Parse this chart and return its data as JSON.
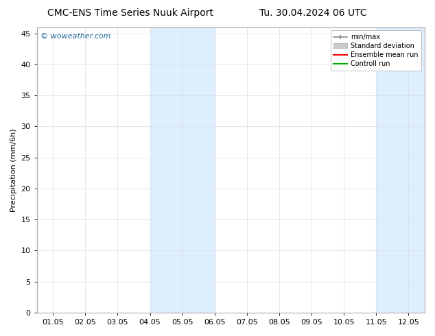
{
  "title": "CMC-ENS Time Series Nuuk Airport",
  "title2": "Tu. 30.04.2024 06 UTC",
  "ylabel": "Precipitation (mm/6h)",
  "ylim": [
    0,
    46
  ],
  "yticks": [
    0,
    5,
    10,
    15,
    20,
    25,
    30,
    35,
    40,
    45
  ],
  "xtick_labels": [
    "01.05",
    "02.05",
    "03.05",
    "04.05",
    "05.05",
    "06.05",
    "07.05",
    "08.05",
    "09.05",
    "10.05",
    "11.05",
    "12.05"
  ],
  "watermark": "© woweather.com",
  "watermark_color": "#1a6699",
  "background_color": "#ffffff",
  "plot_bg_color": "#ffffff",
  "shaded_regions": [
    {
      "xstart": 3,
      "xend": 5,
      "color": "#ddeeff"
    },
    {
      "xstart": 10,
      "xend": 12,
      "color": "#ddeeff"
    }
  ],
  "legend_entries": [
    {
      "label": "min/max",
      "color": "#888888",
      "lw": 1.2
    },
    {
      "label": "Standard deviation",
      "color": "#cccccc",
      "lw": 6
    },
    {
      "label": "Ensemble mean run",
      "color": "#ff0000",
      "lw": 1.5
    },
    {
      "label": "Controll run",
      "color": "#00aa00",
      "lw": 1.5
    }
  ],
  "title_fontsize": 10,
  "title2_fontsize": 10,
  "axis_fontsize": 8,
  "tick_fontsize": 8,
  "legend_fontsize": 7
}
